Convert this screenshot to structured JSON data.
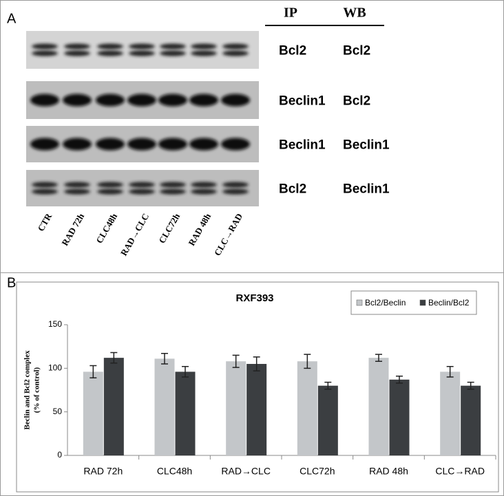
{
  "panel_a": {
    "label": "A",
    "header": [
      "IP",
      "WB"
    ],
    "rows": [
      [
        "Bcl2",
        "Bcl2"
      ],
      [
        "Beclin1",
        "Bcl2"
      ],
      [
        "Beclin1",
        "Beclin1"
      ],
      [
        "Bcl2",
        "Beclin1"
      ]
    ],
    "lanes": [
      "CTR",
      "RAD 72h",
      "CLC48h",
      "RAD→CLC",
      "CLC72h",
      "RAD 48h",
      "CLC→RAD"
    ]
  },
  "panel_b": {
    "label": "B"
  },
  "chart_data": {
    "type": "bar",
    "title": "RXF393",
    "ylabel": [
      "Beclin and Bcl2 complex",
      "(% of control)"
    ],
    "categories": [
      "RAD 72h",
      "CLC48h",
      "RAD→CLC",
      "CLC72h",
      "RAD 48h",
      "CLC→RAD"
    ],
    "series": [
      {
        "name": "Bcl2/Beclin",
        "color": "#c3c6c9",
        "values": [
          96,
          111,
          108,
          108,
          112,
          96
        ],
        "errors": [
          7,
          6,
          7,
          8,
          4,
          6
        ]
      },
      {
        "name": "Beclin/Bcl2",
        "color": "#3b3e41",
        "values": [
          112,
          96,
          105,
          80,
          87,
          80
        ],
        "errors": [
          6,
          6,
          8,
          4,
          4,
          4
        ]
      }
    ],
    "ylim": [
      0,
      150
    ],
    "yticks": [
      0,
      50,
      100,
      150
    ],
    "grid": false,
    "legend": "upper right"
  }
}
